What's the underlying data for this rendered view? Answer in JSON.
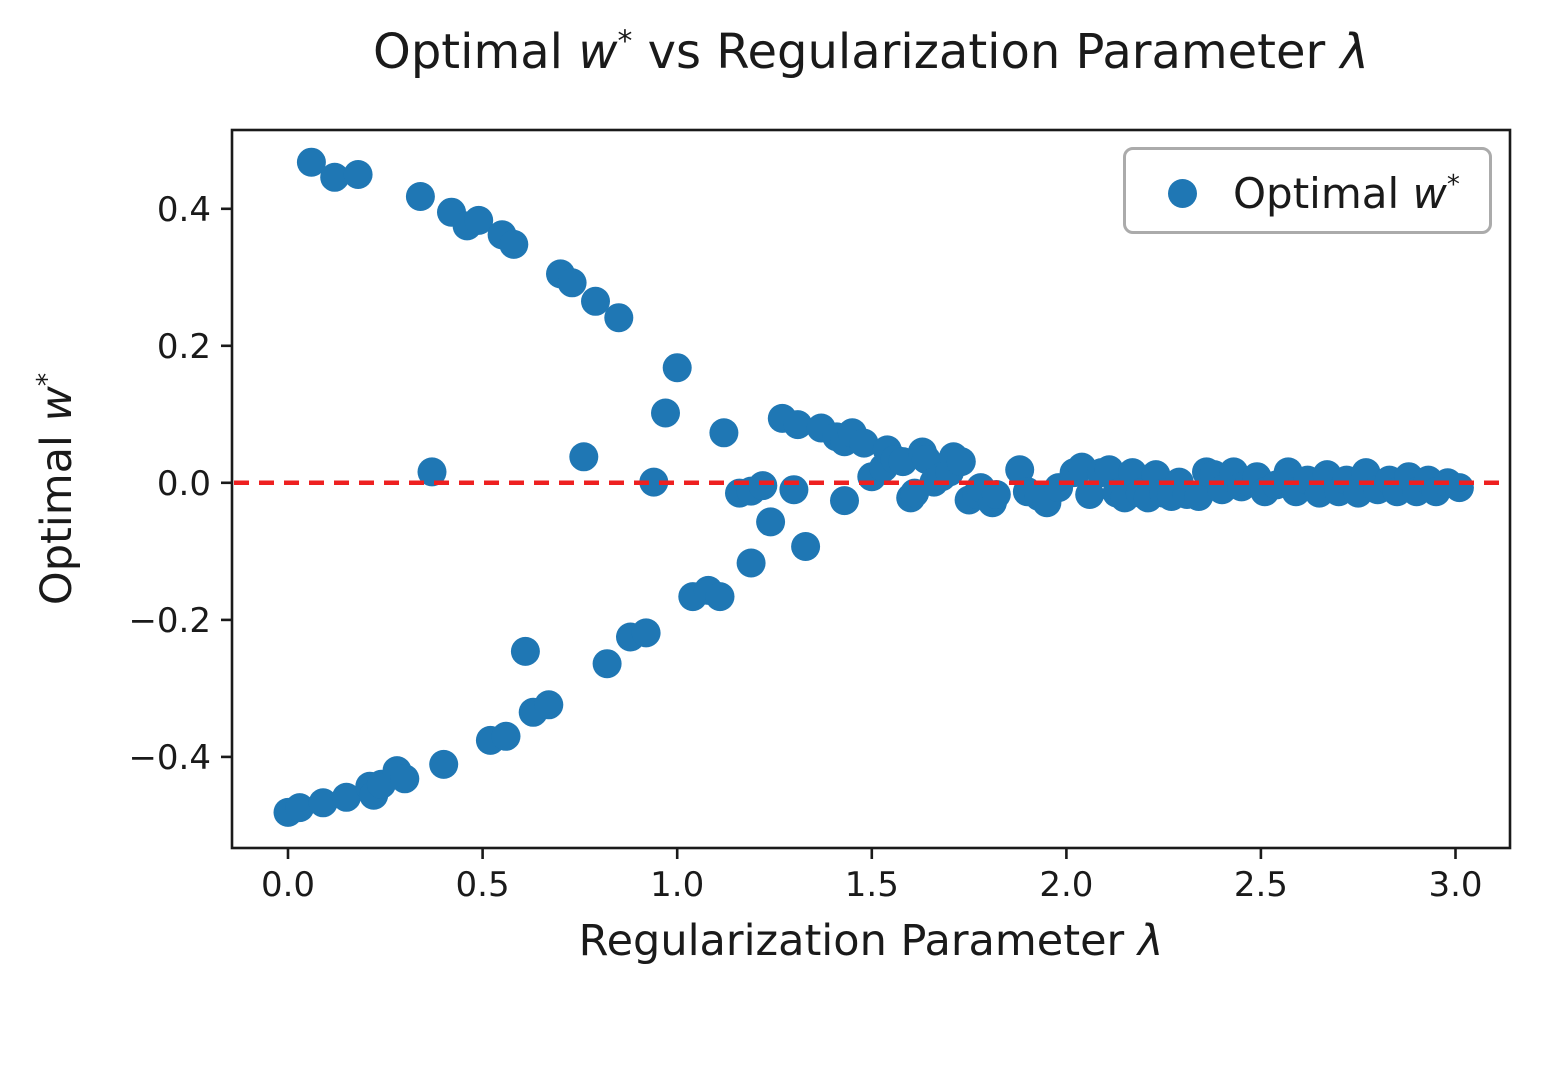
{
  "title": {
    "t1": "Optimal ",
    "t2": "w",
    "t3": "*",
    "t4": " vs Regularization Parameter ",
    "t5": "λ"
  },
  "xlabel": {
    "t1": "Regularization Parameter ",
    "t2": "λ"
  },
  "ylabel": {
    "t1": "Optimal ",
    "t2": "w",
    "t3": "*"
  },
  "legend": {
    "t1": "Optimal ",
    "t2": "w",
    "t3": "*",
    "position": "upper right"
  },
  "colors": {
    "marker": "#1f77b4",
    "zero_line": "#ee2020",
    "axis": "#1a1a1a",
    "legend_border": "#ababab"
  },
  "chart_data": {
    "type": "scatter",
    "title": "Optimal w* vs Regularization Parameter λ",
    "xlabel": "Regularization Parameter λ",
    "ylabel": "Optimal w*",
    "legend_label": "Optimal w*",
    "legend_position": "upper right",
    "grid": false,
    "xlim": [
      -0.144,
      3.14
    ],
    "ylim": [
      -0.533,
      0.515
    ],
    "x_ticks": [
      {
        "v": 0.0,
        "label": "0.0"
      },
      {
        "v": 0.5,
        "label": "0.5"
      },
      {
        "v": 1.0,
        "label": "1.0"
      },
      {
        "v": 1.5,
        "label": "1.5"
      },
      {
        "v": 2.0,
        "label": "2.0"
      },
      {
        "v": 2.5,
        "label": "2.5"
      },
      {
        "v": 3.0,
        "label": "3.0"
      }
    ],
    "y_ticks": [
      {
        "v": 0.4,
        "label": "0.4"
      },
      {
        "v": 0.2,
        "label": "0.2"
      },
      {
        "v": 0.0,
        "label": "0.0"
      },
      {
        "v": -0.2,
        "label": "−0.2"
      },
      {
        "v": -0.4,
        "label": "−0.4"
      }
    ],
    "axhline": {
      "y": 0.0,
      "color": "#ee2020",
      "style": "dashed"
    },
    "marker_color": "#1f77b4",
    "points": [
      [
        0.06,
        0.468
      ],
      [
        0.12,
        0.446
      ],
      [
        0.18,
        0.45
      ],
      [
        0.34,
        0.418
      ],
      [
        0.42,
        0.395
      ],
      [
        0.46,
        0.375
      ],
      [
        0.49,
        0.383
      ],
      [
        0.55,
        0.362
      ],
      [
        0.58,
        0.348
      ],
      [
        0.7,
        0.305
      ],
      [
        0.73,
        0.292
      ],
      [
        0.79,
        0.265
      ],
      [
        0.85,
        0.241
      ],
      [
        0.97,
        0.102
      ],
      [
        1.0,
        0.168
      ],
      [
        1.12,
        0.073
      ],
      [
        1.27,
        0.094
      ],
      [
        1.31,
        0.085
      ],
      [
        1.37,
        0.08
      ],
      [
        1.41,
        0.067
      ],
      [
        0.37,
        0.016
      ],
      [
        0.76,
        0.038
      ],
      [
        0.94,
        0.001
      ],
      [
        1.16,
        -0.015
      ],
      [
        1.19,
        -0.012
      ],
      [
        1.22,
        -0.004
      ],
      [
        1.3,
        -0.01
      ],
      [
        0.0,
        -0.481
      ],
      [
        0.03,
        -0.474
      ],
      [
        0.09,
        -0.467
      ],
      [
        0.15,
        -0.459
      ],
      [
        0.21,
        -0.443
      ],
      [
        0.22,
        -0.456
      ],
      [
        0.24,
        -0.44
      ],
      [
        0.28,
        -0.42
      ],
      [
        0.3,
        -0.432
      ],
      [
        0.4,
        -0.411
      ],
      [
        0.52,
        -0.376
      ],
      [
        0.56,
        -0.37
      ],
      [
        0.61,
        -0.246
      ],
      [
        0.63,
        -0.335
      ],
      [
        0.67,
        -0.324
      ],
      [
        0.82,
        -0.264
      ],
      [
        0.88,
        -0.225
      ],
      [
        0.92,
        -0.219
      ],
      [
        1.04,
        -0.166
      ],
      [
        1.08,
        -0.157
      ],
      [
        1.11,
        -0.166
      ],
      [
        1.19,
        -0.117
      ],
      [
        1.24,
        -0.057
      ],
      [
        1.33,
        -0.093
      ],
      [
        1.43,
        -0.026
      ],
      [
        1.43,
        0.06
      ],
      [
        1.45,
        0.073
      ],
      [
        1.48,
        0.058
      ],
      [
        1.5,
        0.009
      ],
      [
        1.53,
        0.022
      ],
      [
        1.54,
        0.048
      ],
      [
        1.56,
        0.034
      ],
      [
        1.58,
        0.031
      ],
      [
        1.6,
        -0.022
      ],
      [
        1.61,
        -0.015
      ],
      [
        1.63,
        0.045
      ],
      [
        1.64,
        0.034
      ],
      [
        1.66,
        0.001
      ],
      [
        1.68,
        0.009
      ],
      [
        1.7,
        0.016
      ],
      [
        1.71,
        0.038
      ],
      [
        1.73,
        0.031
      ],
      [
        1.75,
        -0.025
      ],
      [
        1.77,
        -0.017
      ],
      [
        1.78,
        -0.007
      ],
      [
        1.81,
        -0.029
      ],
      [
        1.82,
        -0.017
      ],
      [
        1.88,
        0.019
      ],
      [
        1.9,
        -0.013
      ],
      [
        1.93,
        -0.02
      ],
      [
        1.95,
        -0.029
      ],
      [
        1.98,
        -0.007
      ],
      [
        2.02,
        0.015
      ],
      [
        2.04,
        0.023
      ],
      [
        2.06,
        -0.017
      ],
      [
        2.09,
        0.015
      ],
      [
        2.11,
        0.019
      ],
      [
        2.13,
        -0.015
      ],
      [
        2.15,
        -0.022
      ],
      [
        2.17,
        0.015
      ],
      [
        2.19,
        -0.015
      ],
      [
        2.21,
        -0.022
      ],
      [
        2.23,
        0.012
      ],
      [
        2.25,
        -0.015
      ],
      [
        2.27,
        -0.02
      ],
      [
        2.29,
        0.001
      ],
      [
        2.31,
        -0.017
      ],
      [
        2.34,
        -0.02
      ],
      [
        2.36,
        0.016
      ],
      [
        2.38,
        0.012
      ],
      [
        2.4,
        -0.01
      ],
      [
        2.43,
        0.016
      ],
      [
        2.45,
        -0.006
      ],
      [
        2.47,
        0.001
      ],
      [
        2.49,
        0.009
      ],
      [
        2.51,
        -0.013
      ],
      [
        2.54,
        -0.003
      ],
      [
        2.57,
        0.016
      ],
      [
        2.59,
        -0.013
      ],
      [
        2.62,
        0.004
      ],
      [
        2.65,
        -0.015
      ],
      [
        2.67,
        0.012
      ],
      [
        2.7,
        -0.013
      ],
      [
        2.72,
        0.004
      ],
      [
        2.75,
        -0.015
      ],
      [
        2.77,
        0.015
      ],
      [
        2.8,
        -0.01
      ],
      [
        2.83,
        0.004
      ],
      [
        2.85,
        -0.013
      ],
      [
        2.88,
        0.009
      ],
      [
        2.9,
        -0.013
      ],
      [
        2.93,
        0.004
      ],
      [
        2.95,
        -0.013
      ],
      [
        2.98,
        0.0
      ],
      [
        3.01,
        -0.007
      ]
    ]
  }
}
